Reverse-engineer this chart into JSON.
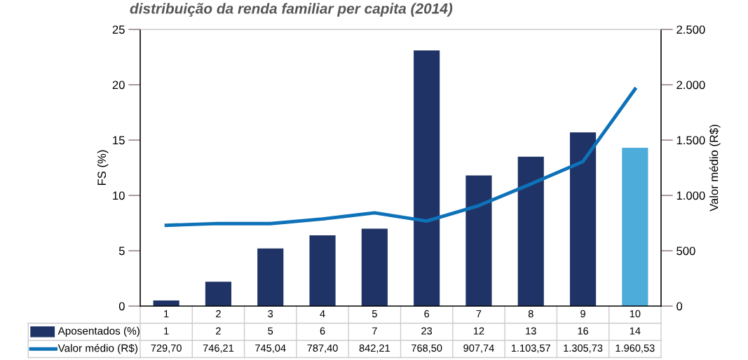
{
  "chart_data": {
    "type": "bar",
    "title": "distribuição da renda familiar per capita (2014)",
    "categories": [
      "1",
      "2",
      "3",
      "4",
      "5",
      "6",
      "7",
      "8",
      "9",
      "10"
    ],
    "ylabel": "FS (%)",
    "y2label": "Valor médio (R$)",
    "ylim": [
      0,
      25
    ],
    "yticks": [
      0,
      5,
      10,
      15,
      20,
      25
    ],
    "y2lim": [
      0,
      2500
    ],
    "y2ticks": [
      0,
      {
        "value": 500,
        "label": "500"
      },
      {
        "value": 1000,
        "label": "1.000"
      },
      {
        "value": 1500,
        "label": "1.500"
      },
      {
        "value": 2000,
        "label": "2.000"
      },
      {
        "value": 2500,
        "label": "2.500"
      }
    ],
    "legend": "bottom",
    "series": [
      {
        "name": "Aposentados (%)",
        "color": "#1f3366",
        "colors": [
          "#1f3366",
          "#1f3366",
          "#1f3366",
          "#1f3366",
          "#1f3366",
          "#1f3366",
          "#1f3366",
          "#1f3366",
          "#1f3366",
          "#4dacd9"
        ],
        "values": [
          0.5,
          2.2,
          5.2,
          6.4,
          7.0,
          23.1,
          11.8,
          13.5,
          15.7,
          14.3
        ],
        "value_labels": [
          "1",
          "2",
          "5",
          "6",
          "7",
          "23",
          "12",
          "13",
          "16",
          "14"
        ]
      },
      {
        "name": "Valor médio (R$)",
        "type": "line",
        "axis": "y2",
        "color": "#0e72b8",
        "values": [
          729.7,
          746.21,
          745.04,
          787.4,
          842.21,
          768.5,
          907.74,
          1103.57,
          1305.73,
          1960.53
        ],
        "value_labels": [
          "729,70",
          "746,21",
          "745,04",
          "787,40",
          "842,21",
          "768,50",
          "907,74",
          "1.103,57",
          "1.305,73",
          "1.960,53"
        ]
      }
    ]
  }
}
